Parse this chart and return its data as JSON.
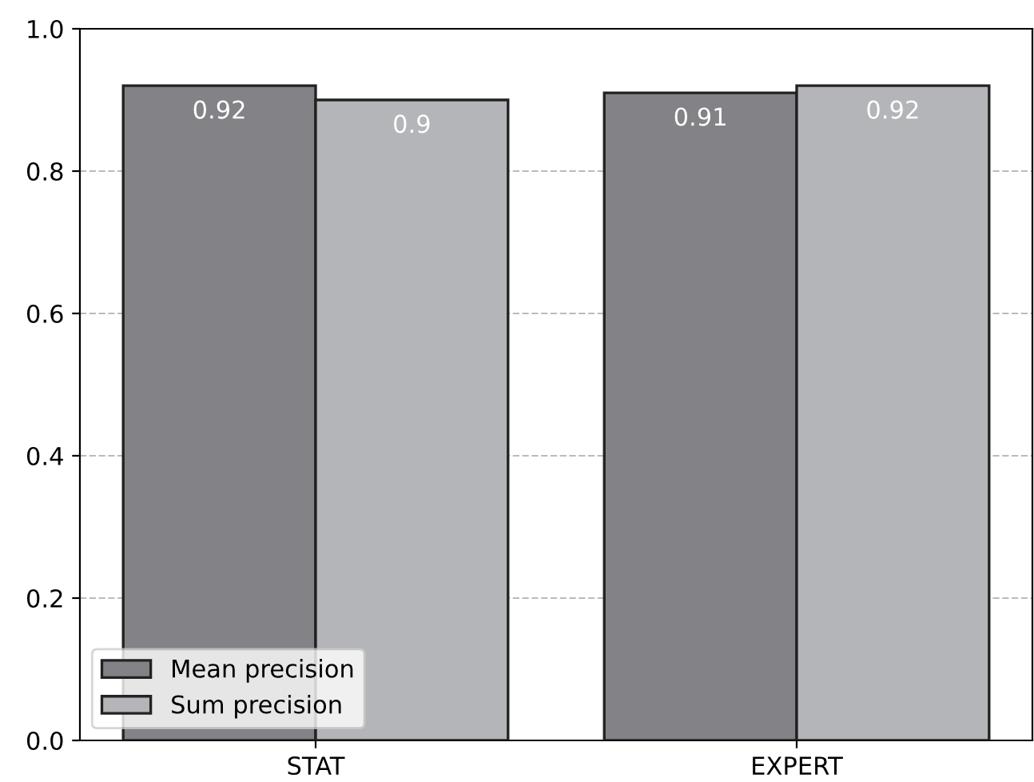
{
  "chart_data": {
    "type": "bar",
    "categories": [
      "STAT",
      "EXPERT"
    ],
    "series": [
      {
        "name": "Mean precision",
        "color": "#838387",
        "values": [
          0.92,
          0.91
        ]
      },
      {
        "name": "Sum precision",
        "color": "#b4b5b8",
        "values": [
          0.9,
          0.92
        ]
      }
    ],
    "ylim": [
      0,
      1.0
    ],
    "yticks": [
      {
        "value": 0,
        "label": "0.0"
      },
      0.2,
      0.4,
      0.6,
      0.8,
      {
        "value": 1.0,
        "label": "1.0"
      }
    ],
    "grid": "y",
    "legend": "bottom left",
    "data_labels": true
  }
}
